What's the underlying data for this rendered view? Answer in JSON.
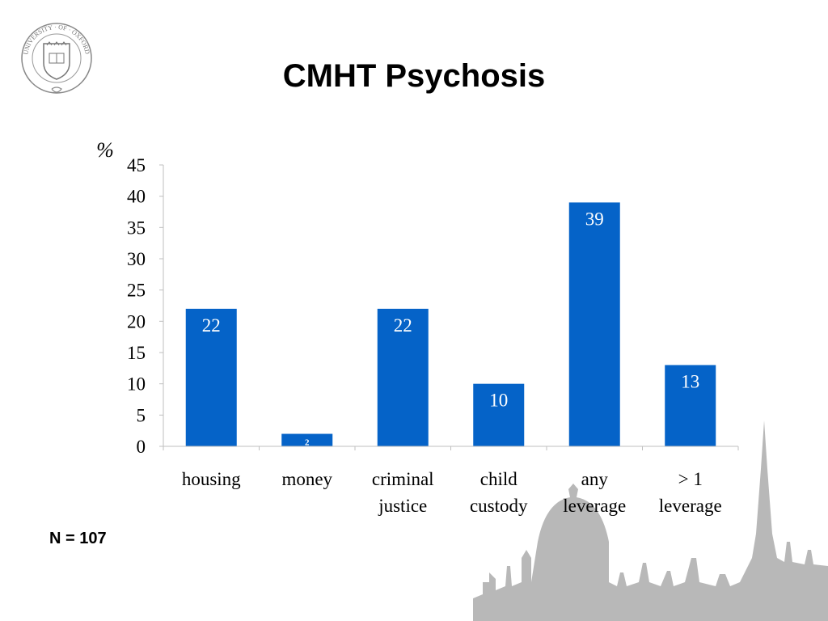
{
  "slide": {
    "title": "CMHT Psychosis",
    "note": "N = 107",
    "logo_icon": "university-of-oxford-crest-icon",
    "logo_text": "UNIVERSITY · OF · OXFORD",
    "background_icon": "oxford-skyline-silhouette"
  },
  "colors": {
    "bar": "#0563C8",
    "skyline": "#b8b8b8",
    "axis": "#bfbfbf"
  },
  "chart_data": {
    "type": "bar",
    "title": "",
    "xlabel": "",
    "ylabel": "%",
    "ylim": [
      0,
      45
    ],
    "yticks": [
      0,
      5,
      10,
      15,
      20,
      25,
      30,
      35,
      40,
      45
    ],
    "categories": [
      [
        "housing"
      ],
      [
        "money"
      ],
      [
        "criminal",
        "justice"
      ],
      [
        "child",
        "custody"
      ],
      [
        "any",
        "leverage"
      ],
      [
        "> 1",
        "leverage"
      ]
    ],
    "values": [
      22,
      2,
      22,
      10,
      39,
      13
    ],
    "data_labels": [
      "22",
      "2",
      "22",
      "10",
      "39",
      "13"
    ],
    "legend": "none",
    "grid": false
  }
}
